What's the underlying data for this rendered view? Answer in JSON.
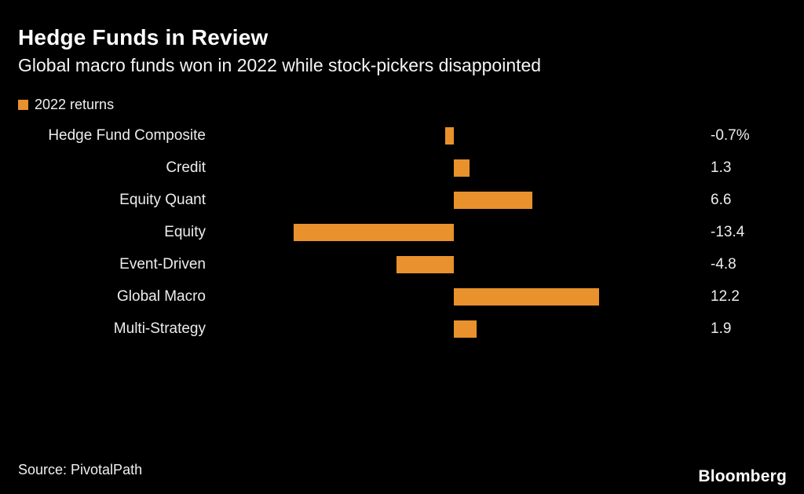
{
  "title": "Hedge Funds in Review",
  "subtitle": "Global macro funds won in 2022 while stock-pickers disappointed",
  "legend": {
    "label": "2022 returns"
  },
  "source": "Source: PivotalPath",
  "logo": "Bloomberg",
  "colors": {
    "background": "#000000",
    "bar": "#E8912D",
    "title_text": "#FFFFFF",
    "label_text": "#EDEDED"
  },
  "chart_data": {
    "type": "bar",
    "orientation": "horizontal",
    "title": "Hedge Funds in Review",
    "subtitle": "Global macro funds won in 2022 while stock-pickers disappointed",
    "series_name": "2022 returns",
    "unit": "%",
    "categories": [
      "Hedge Fund Composite",
      "Credit",
      "Equity Quant",
      "Equity",
      "Event-Driven",
      "Global Macro",
      "Multi-Strategy"
    ],
    "values": [
      -0.7,
      1.3,
      6.6,
      -13.4,
      -4.8,
      12.2,
      1.9
    ],
    "value_labels": [
      "-0.7%",
      "1.3",
      "6.6",
      "-13.4",
      "-4.8",
      "12.2",
      "1.9"
    ],
    "xlim": [
      -18,
      20
    ],
    "grid": false,
    "legend_position": "top-left",
    "value_labels_position": "right-column"
  }
}
